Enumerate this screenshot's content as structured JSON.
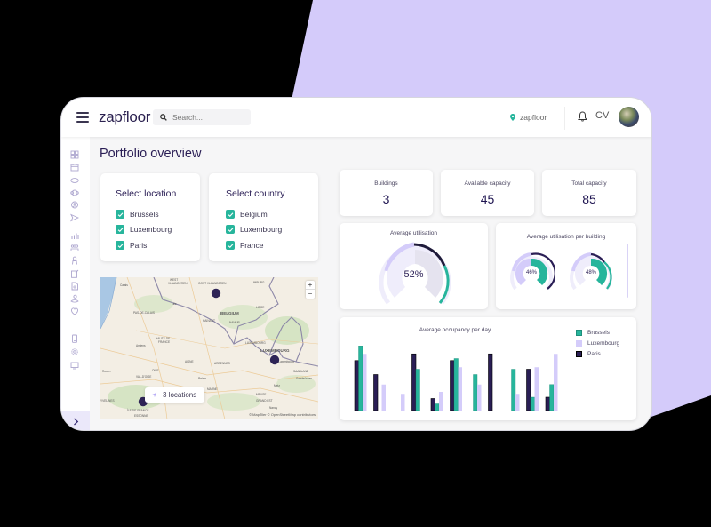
{
  "app": {
    "logo": "zapfloor"
  },
  "topbar": {
    "search_placeholder": "Search...",
    "location_label": "zapfloor",
    "user_initials": "CV"
  },
  "sidebar": {
    "items": [
      {
        "name": "dashboard-icon"
      },
      {
        "name": "calendar-icon"
      },
      {
        "name": "desk-icon"
      },
      {
        "name": "meeting-room-icon"
      },
      {
        "name": "visitor-icon"
      },
      {
        "name": "send-icon"
      },
      {
        "name": "analytics-icon"
      },
      {
        "name": "team-icon"
      },
      {
        "name": "user-icon"
      },
      {
        "name": "edit-document-icon"
      },
      {
        "name": "document-icon"
      },
      {
        "name": "user-location-icon"
      },
      {
        "name": "heart-shield-icon"
      },
      {
        "name": "device-icon"
      },
      {
        "name": "settings-icon"
      },
      {
        "name": "display-icon"
      }
    ],
    "expand_icon": "chevron-right-icon"
  },
  "page": {
    "title": "Portfolio overview"
  },
  "filters": {
    "location": {
      "title": "Select location",
      "options": [
        {
          "label": "Brussels",
          "checked": true
        },
        {
          "label": "Luxembourg",
          "checked": true
        },
        {
          "label": "Paris",
          "checked": true
        }
      ]
    },
    "country": {
      "title": "Select country",
      "options": [
        {
          "label": "Belgium",
          "checked": true
        },
        {
          "label": "Luxembourg",
          "checked": true
        },
        {
          "label": "France",
          "checked": true
        }
      ]
    }
  },
  "map": {
    "labels": [
      "Calais",
      "WEST VLAANDEREN",
      "OOST VLAANDEREN",
      "Brussels",
      "LIMBURG",
      "Lille",
      "BELGIUM",
      "LIEGE",
      "PAS-DE-CALAIS",
      "HAINAUT",
      "NAMUR",
      "HAUTS-DE-FRANCE",
      "Amiens",
      "LUXEMBOURG",
      "Luxembourg",
      "AISNE",
      "ARDENNES",
      "OISE",
      "SAARLAND",
      "Reims",
      "Saarbrücken",
      "MARNE",
      "Metz",
      "MEUSE",
      "VAL-D'OISE",
      "YVELINES",
      "GRAND EST",
      "ÎLE-DE-FRANCE",
      "Nancy",
      "ESSONNE"
    ],
    "zoom_in": "+",
    "zoom_out": "−",
    "locations_pill": "3 locations",
    "attribution": "© MapTiler © OpenStreetMap contributors"
  },
  "stats": [
    {
      "label": "Buildings",
      "value": "3"
    },
    {
      "label": "Available capacity",
      "value": "45"
    },
    {
      "label": "Total capacity",
      "value": "85"
    }
  ],
  "utilisation": {
    "title": "Average utilisation",
    "value": "52%"
  },
  "utilisation_per_building": {
    "title": "Average utilisation per building",
    "gauges": [
      {
        "value": "46%"
      },
      {
        "value": "48%"
      }
    ]
  },
  "colors": {
    "brussels": "#27b59c",
    "luxembourg": "#d4ccfa",
    "paris": "#2a1e55",
    "accent_bg": "#d4cbfa"
  },
  "chart_data": {
    "type": "bar",
    "title": "Average occupancy per day",
    "xlabel": "",
    "ylabel": "",
    "ylim": [
      0,
      100
    ],
    "grid": false,
    "legend_position": "right",
    "categories": [
      "1",
      "2",
      "3",
      "4",
      "5",
      "6",
      "7",
      "8",
      "9",
      "10",
      "11",
      "12"
    ],
    "series": [
      {
        "name": "Brussels",
        "color": "#27b59c",
        "values": [
          97,
          0,
          0,
          62,
          10,
          78,
          54,
          0,
          62,
          20,
          39,
          0
        ]
      },
      {
        "name": "Luxembourg",
        "color": "#d4ccfa",
        "values": [
          85,
          39,
          25,
          0,
          28,
          65,
          39,
          0,
          25,
          65,
          85,
          0
        ]
      },
      {
        "name": "Paris",
        "color": "#2a1e55",
        "values": [
          75,
          54,
          0,
          85,
          18,
          75,
          0,
          85,
          0,
          62,
          20,
          0
        ]
      }
    ]
  }
}
